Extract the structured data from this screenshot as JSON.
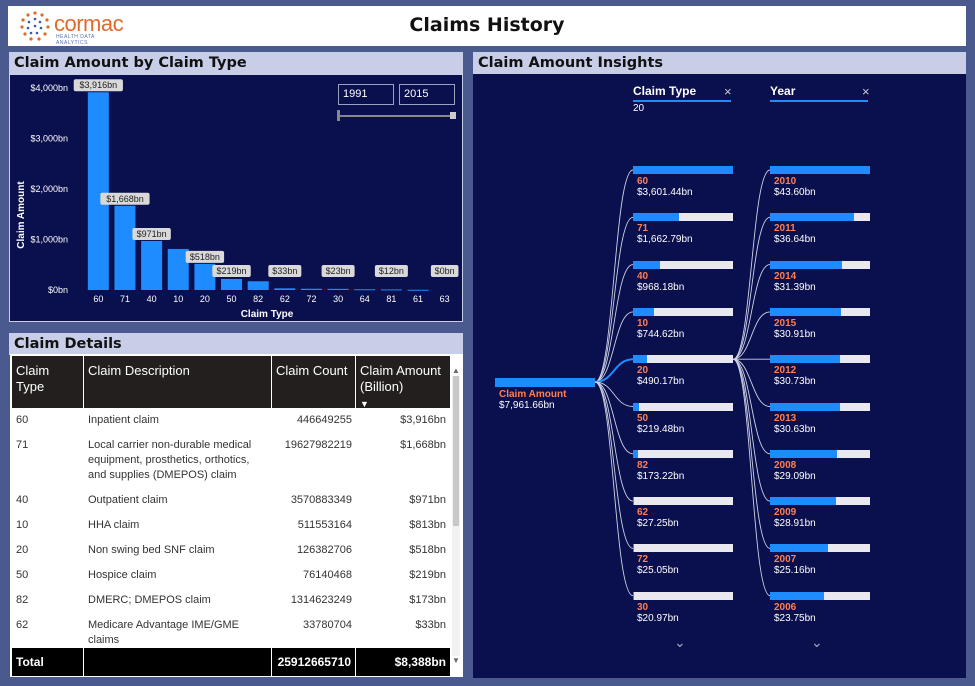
{
  "header": {
    "logo_text": "cormac",
    "logo_sub": "HEALTH DATA ANALYTICS",
    "title": "Claims History"
  },
  "bar_panel": {
    "title": "Claim Amount by Claim Type",
    "slicer": {
      "from": "1991",
      "to": "2015"
    }
  },
  "chart_data": {
    "type": "bar",
    "title": "",
    "xlabel": "Claim Type",
    "ylabel": "Claim Amount",
    "categories": [
      "60",
      "71",
      "40",
      "10",
      "20",
      "50",
      "82",
      "62",
      "72",
      "30",
      "64",
      "81",
      "61",
      "63"
    ],
    "values": [
      3916,
      1668,
      971,
      813,
      518,
      219,
      173,
      33,
      25,
      23,
      15,
      12,
      5,
      0
    ],
    "data_labels": {
      "0": "$3,916bn",
      "1": "$1,668bn",
      "2": "$971bn",
      "4": "$518bn",
      "5": "$219bn",
      "7": "$33bn",
      "9": "$23bn",
      "11": "$12bn",
      "13": "$0bn"
    },
    "yticks": [
      "$0bn",
      "$1,000bn",
      "$2,000bn",
      "$3,000bn",
      "$4,000bn"
    ],
    "ylim": [
      0,
      4000
    ],
    "color": "#1e8cff"
  },
  "table_panel": {
    "title": "Claim Details",
    "columns": [
      "Claim Type",
      "Claim Description",
      "Claim Count",
      "Claim Amount (Billion)"
    ],
    "sort_indicator": "▼",
    "rows": [
      {
        "type": "60",
        "desc": "Inpatient claim",
        "count": "446649255",
        "amount": "$3,916bn"
      },
      {
        "type": "71",
        "desc": "Local carrier non-durable medical equipment, prosthetics, orthotics, and supplies (DMEPOS) claim",
        "count": "19627982219",
        "amount": "$1,668bn"
      },
      {
        "type": "40",
        "desc": "Outpatient claim",
        "count": "3570883349",
        "amount": "$971bn"
      },
      {
        "type": "10",
        "desc": "HHA claim",
        "count": "511553164",
        "amount": "$813bn"
      },
      {
        "type": "20",
        "desc": "Non swing bed SNF claim",
        "count": "126382706",
        "amount": "$518bn"
      },
      {
        "type": "50",
        "desc": "Hospice claim",
        "count": "76140468",
        "amount": "$219bn"
      },
      {
        "type": "82",
        "desc": "DMERC; DMEPOS claim",
        "count": "1314623249",
        "amount": "$173bn"
      },
      {
        "type": "62",
        "desc": "Medicare Advantage IME/GME claims",
        "count": "33780704",
        "amount": "$33bn"
      }
    ],
    "total": {
      "label": "Total",
      "count": "25912665710",
      "amount": "$8,388bn"
    }
  },
  "tree_panel": {
    "title": "Claim Amount Insights",
    "root": {
      "name": "Claim Amount",
      "value": "$7,961.66bn"
    },
    "filter1": {
      "label": "Claim Type",
      "selected": "20"
    },
    "filter2": {
      "label": "Year"
    },
    "level1": [
      {
        "name": "60",
        "value": "$3,601.44bn",
        "frac": 1.0
      },
      {
        "name": "71",
        "value": "$1,662.79bn",
        "frac": 0.46
      },
      {
        "name": "40",
        "value": "$968.18bn",
        "frac": 0.27
      },
      {
        "name": "10",
        "value": "$744.62bn",
        "frac": 0.21
      },
      {
        "name": "20",
        "value": "$490.17bn",
        "frac": 0.14
      },
      {
        "name": "50",
        "value": "$219.48bn",
        "frac": 0.06
      },
      {
        "name": "82",
        "value": "$173.22bn",
        "frac": 0.05
      },
      {
        "name": "62",
        "value": "$27.25bn",
        "frac": 0.01
      },
      {
        "name": "72",
        "value": "$25.05bn",
        "frac": 0.01
      },
      {
        "name": "30",
        "value": "$20.97bn",
        "frac": 0.01
      }
    ],
    "level2": [
      {
        "name": "2010",
        "value": "$43.60bn",
        "frac": 1.0
      },
      {
        "name": "2011",
        "value": "$36.64bn",
        "frac": 0.84
      },
      {
        "name": "2014",
        "value": "$31.39bn",
        "frac": 0.72
      },
      {
        "name": "2015",
        "value": "$30.91bn",
        "frac": 0.71
      },
      {
        "name": "2012",
        "value": "$30.73bn",
        "frac": 0.7
      },
      {
        "name": "2013",
        "value": "$30.63bn",
        "frac": 0.7
      },
      {
        "name": "2008",
        "value": "$29.09bn",
        "frac": 0.67
      },
      {
        "name": "2009",
        "value": "$28.91bn",
        "frac": 0.66
      },
      {
        "name": "2007",
        "value": "$25.16bn",
        "frac": 0.58
      },
      {
        "name": "2006",
        "value": "$23.75bn",
        "frac": 0.54
      }
    ]
  }
}
